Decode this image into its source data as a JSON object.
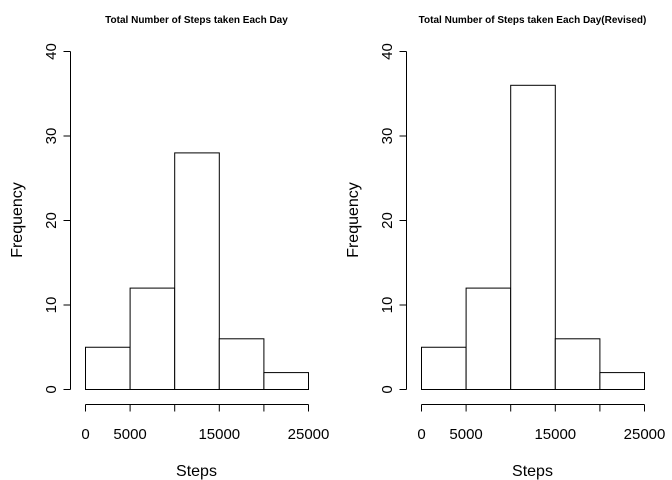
{
  "chart_data": [
    {
      "type": "bar",
      "title": "Total Number of Steps taken Each Day",
      "xlabel": "Steps",
      "ylabel": "Frequency",
      "bin_edges": [
        0,
        5000,
        10000,
        15000,
        20000,
        25000
      ],
      "values": [
        5,
        12,
        28,
        6,
        2
      ],
      "xlim": [
        0,
        25000
      ],
      "ylim": [
        0,
        40
      ],
      "x_ticks": [
        0,
        5000,
        10000,
        15000,
        20000,
        25000
      ],
      "x_tick_labels": [
        "0",
        "5000",
        "",
        "15000",
        "",
        "25000"
      ],
      "y_ticks": [
        0,
        10,
        20,
        30,
        40
      ],
      "y_tick_labels": [
        "0",
        "10",
        "20",
        "30",
        "40"
      ],
      "grid": false,
      "bar_fill": "#ffffff",
      "bar_stroke": "#000000"
    },
    {
      "type": "bar",
      "title": "Total Number of Steps taken Each Day(Revised)",
      "xlabel": "Steps",
      "ylabel": "Frequency",
      "bin_edges": [
        0,
        5000,
        10000,
        15000,
        20000,
        25000
      ],
      "values": [
        5,
        12,
        36,
        6,
        2
      ],
      "xlim": [
        0,
        25000
      ],
      "ylim": [
        0,
        40
      ],
      "x_ticks": [
        0,
        5000,
        10000,
        15000,
        20000,
        25000
      ],
      "x_tick_labels": [
        "0",
        "5000",
        "",
        "15000",
        "",
        "25000"
      ],
      "y_ticks": [
        0,
        10,
        20,
        30,
        40
      ],
      "y_tick_labels": [
        "0",
        "10",
        "20",
        "30",
        "40"
      ],
      "grid": false,
      "bar_fill": "#ffffff",
      "bar_stroke": "#000000"
    }
  ]
}
